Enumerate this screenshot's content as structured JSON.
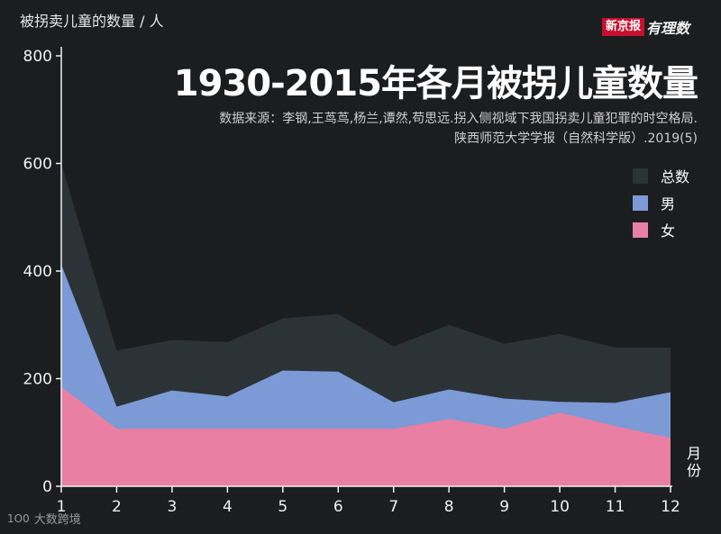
{
  "chart_data": {
    "type": "area",
    "title": "1930-2015年各月被拐儿童数量",
    "source_lines": [
      "数据来源：李钢,王茑茑,杨兰,谭然,苟思远.拐入侧视域下我国拐卖儿童犯罪的时空格局.",
      "陕西师范大学学报（自然科学版）.2019(5)"
    ],
    "ylabel": "被拐卖儿童的数量 / 人",
    "xlabel": "月份",
    "x": [
      1,
      2,
      3,
      4,
      5,
      6,
      7,
      8,
      9,
      10,
      11,
      12
    ],
    "ylim": [
      0,
      800
    ],
    "yticks": [
      0,
      200,
      400,
      600,
      800
    ],
    "series": [
      {
        "name": "总数",
        "color": "#2c3336",
        "values": [
          600,
          252,
          272,
          268,
          312,
          320,
          260,
          300,
          265,
          283,
          258,
          258
        ]
      },
      {
        "name": "男",
        "color": "#7b9ad6",
        "values": [
          412,
          148,
          178,
          167,
          215,
          213,
          156,
          180,
          163,
          157,
          155,
          175
        ]
      },
      {
        "name": "女",
        "color": "#e97fa2",
        "values": [
          185,
          107,
          107,
          107,
          107,
          107,
          107,
          125,
          107,
          137,
          112,
          90
        ]
      }
    ],
    "legend_position": "right"
  },
  "branding": {
    "publisher": "新京报",
    "column": "有理数",
    "watermark": "大数跨境",
    "watermark_logo": "1O0"
  }
}
